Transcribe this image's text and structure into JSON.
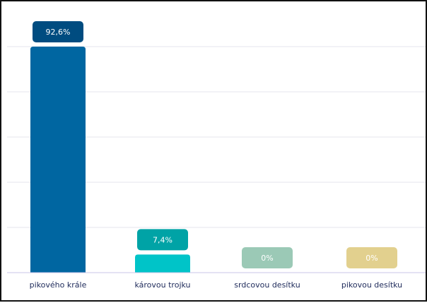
{
  "chart_data": {
    "type": "bar",
    "categories": [
      "pikového krále",
      "károvou trojku",
      "srdcovou desítku",
      "pikovou desítku"
    ],
    "values": [
      92.6,
      7.4,
      0,
      0
    ],
    "value_labels": [
      "92,6%",
      "7,4%",
      "0%",
      "0%"
    ],
    "ylim": [
      0,
      100
    ],
    "grid": true,
    "legend": "none",
    "title": "",
    "xlabel": "",
    "ylabel": "",
    "bar_colors": [
      "#0066a1",
      "#00c4c8",
      "#7fd3c1",
      "#eede9a"
    ],
    "label_colors": [
      "#004c80",
      "#00a3a6",
      "#9bc9b6",
      "#e2d08e"
    ]
  }
}
